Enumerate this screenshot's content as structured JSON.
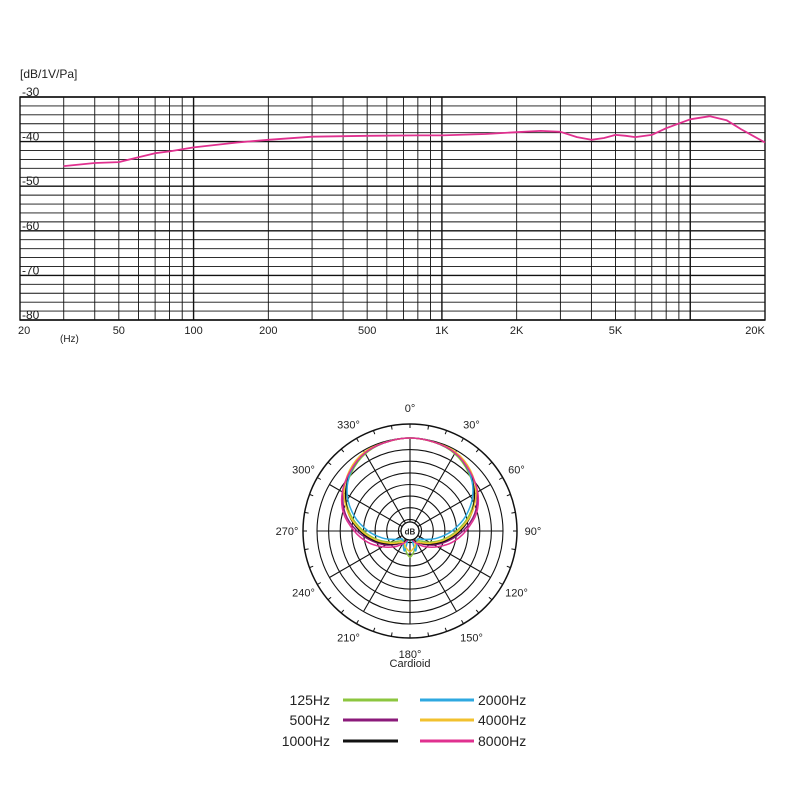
{
  "chart_data": [
    {
      "type": "line",
      "title": "",
      "ylabel": "[dB/1V/Pa]",
      "xlabel": "(Hz)",
      "x_scale": "log",
      "xlim": [
        20,
        20000
      ],
      "ylim": [
        -80,
        -30
      ],
      "grid": true,
      "x_tick_labels": [
        {
          "value": 20,
          "label": "20"
        },
        {
          "value": 50,
          "label": "50"
        },
        {
          "value": 100,
          "label": "100"
        },
        {
          "value": 200,
          "label": "200"
        },
        {
          "value": 500,
          "label": "500"
        },
        {
          "value": 1000,
          "label": "1K"
        },
        {
          "value": 2000,
          "label": "2K"
        },
        {
          "value": 5000,
          "label": "5K"
        },
        {
          "value": 20000,
          "label": "20K"
        }
      ],
      "y_tick_labels": [
        {
          "value": -30,
          "label": "-30"
        },
        {
          "value": -40,
          "label": "-40"
        },
        {
          "value": -50,
          "label": "-50"
        },
        {
          "value": -60,
          "label": "-60"
        },
        {
          "value": -70,
          "label": "-70"
        },
        {
          "value": -80,
          "label": "-80"
        }
      ],
      "series": [
        {
          "color": "#e0308f",
          "x": [
            30,
            40,
            50,
            60,
            70,
            80,
            100,
            150,
            200,
            300,
            500,
            800,
            1000,
            1500,
            2000,
            2500,
            3000,
            3500,
            4000,
            4500,
            5000,
            5500,
            6000,
            7000,
            8000,
            10000,
            12000,
            14000,
            16000,
            18000,
            20000
          ],
          "y": [
            -45.5,
            -44.8,
            -44.6,
            -43.5,
            -42.6,
            -42.2,
            -41.3,
            -40.2,
            -39.6,
            -38.9,
            -38.7,
            -38.6,
            -38.6,
            -38.3,
            -37.9,
            -37.6,
            -37.8,
            -39.0,
            -39.6,
            -39.2,
            -38.5,
            -38.7,
            -39.0,
            -38.5,
            -37.0,
            -35.0,
            -34.3,
            -35.2,
            -37.2,
            -38.8,
            -40.2
          ]
        }
      ]
    },
    {
      "type": "polar",
      "subtitle": "Cardioid",
      "center_label": "dB",
      "ring_count": 8,
      "angle_labels": [
        {
          "deg": 0,
          "label": "0°"
        },
        {
          "deg": 30,
          "label": "30°"
        },
        {
          "deg": 60,
          "label": "60°"
        },
        {
          "deg": 90,
          "label": "90°"
        },
        {
          "deg": 120,
          "label": "120°"
        },
        {
          "deg": 150,
          "label": "150°"
        },
        {
          "deg": 180,
          "label": "180°"
        },
        {
          "deg": 210,
          "label": "210°"
        },
        {
          "deg": 240,
          "label": "240°"
        },
        {
          "deg": 270,
          "label": "270°"
        },
        {
          "deg": 300,
          "label": "300°"
        },
        {
          "deg": 330,
          "label": "330°"
        }
      ],
      "series": [
        {
          "name": "125Hz",
          "color": "#8cc63f",
          "r_frac": [
            1.0,
            0.99,
            0.96,
            0.89,
            0.8,
            0.66,
            0.5,
            0.36,
            0.24,
            0.15,
            0.12,
            0.2,
            0.28,
            0.2,
            0.12,
            0.15,
            0.24,
            0.36,
            0.5,
            0.66,
            0.8,
            0.89,
            0.96,
            0.99
          ]
        },
        {
          "name": "500Hz",
          "color": "#8b1a7a",
          "r_frac": [
            1.0,
            0.99,
            0.97,
            0.91,
            0.83,
            0.72,
            0.57,
            0.42,
            0.3,
            0.2,
            0.14,
            0.1,
            0.08,
            0.1,
            0.14,
            0.2,
            0.3,
            0.42,
            0.57,
            0.72,
            0.83,
            0.91,
            0.97,
            0.99
          ]
        },
        {
          "name": "1000Hz",
          "color": "#111111",
          "r_frac": [
            1.0,
            0.99,
            0.97,
            0.9,
            0.8,
            0.68,
            0.54,
            0.4,
            0.28,
            0.19,
            0.13,
            0.1,
            0.09,
            0.1,
            0.13,
            0.19,
            0.28,
            0.4,
            0.54,
            0.68,
            0.8,
            0.9,
            0.97,
            0.99
          ]
        },
        {
          "name": "2000Hz",
          "color": "#2ea8e0",
          "r_frac": [
            1.0,
            0.99,
            0.97,
            0.9,
            0.78,
            0.62,
            0.45,
            0.3,
            0.18,
            0.12,
            0.15,
            0.22,
            0.05,
            0.22,
            0.15,
            0.12,
            0.18,
            0.3,
            0.45,
            0.62,
            0.78,
            0.9,
            0.97,
            0.99
          ]
        },
        {
          "name": "4000Hz",
          "color": "#f2c12e",
          "r_frac": [
            1.0,
            0.99,
            0.98,
            0.92,
            0.82,
            0.68,
            0.52,
            0.38,
            0.26,
            0.18,
            0.14,
            0.18,
            0.22,
            0.18,
            0.14,
            0.18,
            0.26,
            0.38,
            0.52,
            0.68,
            0.82,
            0.92,
            0.98,
            0.99
          ]
        },
        {
          "name": "8000Hz",
          "color": "#e0308f",
          "r_frac": [
            1.0,
            0.99,
            0.97,
            0.91,
            0.84,
            0.74,
            0.6,
            0.47,
            0.34,
            0.24,
            0.16,
            0.1,
            0.06,
            0.1,
            0.16,
            0.24,
            0.34,
            0.47,
            0.6,
            0.74,
            0.84,
            0.91,
            0.97,
            0.99
          ]
        }
      ]
    }
  ]
}
